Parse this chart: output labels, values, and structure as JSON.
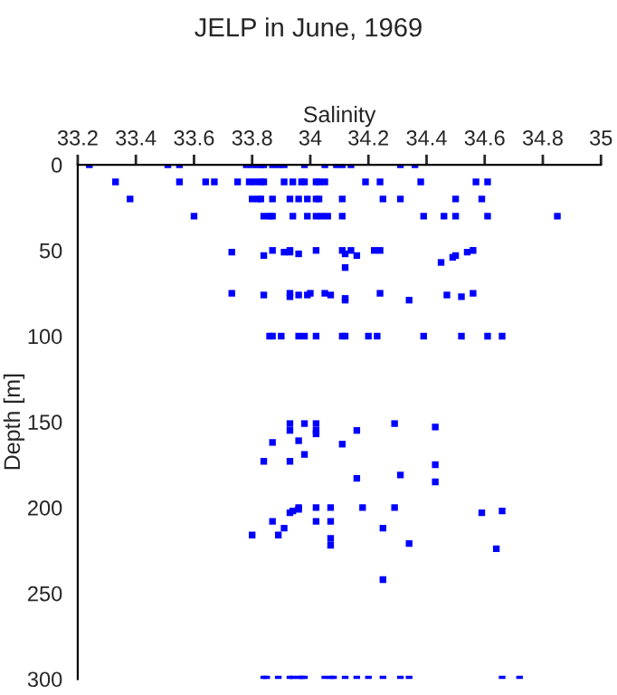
{
  "chart_data": {
    "type": "scatter",
    "title": "JELP in June, 1969",
    "xlabel": "Salinity",
    "ylabel": "Depth [m]",
    "xlim": [
      33.2,
      35
    ],
    "xticks": [
      33.2,
      33.4,
      33.6,
      33.8,
      34,
      34.2,
      34.4,
      34.6,
      34.8,
      35
    ],
    "ylim": [
      300,
      0
    ],
    "yticks": [
      0,
      50,
      100,
      150,
      200,
      250,
      300
    ],
    "marker": "square",
    "grid": false,
    "legend": false,
    "series": [
      {
        "color": "#0000ff",
        "x": [
          33.24,
          33.51,
          33.55,
          33.78,
          33.8,
          33.82,
          33.83,
          33.84,
          33.87,
          33.89,
          33.91,
          33.98,
          34.05,
          34.09,
          34.11,
          34.14,
          34.31,
          34.36,
          33.33,
          33.55,
          33.64,
          33.67,
          33.75,
          33.79,
          33.81,
          33.83,
          33.84,
          33.91,
          33.94,
          33.97,
          33.98,
          34.02,
          34.03,
          34.05,
          34.19,
          34.24,
          34.38,
          34.57,
          34.61,
          33.38,
          33.8,
          33.82,
          33.83,
          33.87,
          33.93,
          33.96,
          33.99,
          34.02,
          34.03,
          34.11,
          34.25,
          34.31,
          34.5,
          34.59,
          33.6,
          33.84,
          33.86,
          33.87,
          33.94,
          33.99,
          34.02,
          34.04,
          34.06,
          34.11,
          34.39,
          34.46,
          34.5,
          34.61,
          34.85,
          33.73,
          33.84,
          33.87,
          33.91,
          33.93,
          33.93,
          33.96,
          34.02,
          34.11,
          34.12,
          34.14,
          34.16,
          34.12,
          34.22,
          34.24,
          34.45,
          34.49,
          34.5,
          34.54,
          34.56,
          33.73,
          33.84,
          33.93,
          33.93,
          33.96,
          33.99,
          34.0,
          34.05,
          34.07,
          34.12,
          34.12,
          34.24,
          34.34,
          34.47,
          34.52,
          34.56,
          33.86,
          33.87,
          33.9,
          33.96,
          33.98,
          34.02,
          34.11,
          34.12,
          34.2,
          34.23,
          34.39,
          34.52,
          34.61,
          34.66,
          33.93,
          33.93,
          33.98,
          34.02,
          34.02,
          34.02,
          34.16,
          34.29,
          34.43,
          33.87,
          33.96,
          34.11,
          33.84,
          33.93,
          33.98,
          34.16,
          34.31,
          34.43,
          34.43,
          33.96,
          34.02,
          34.07,
          34.18,
          34.29,
          33.87,
          33.93,
          33.94,
          33.96,
          34.02,
          34.07,
          33.91,
          33.8,
          33.89,
          34.07,
          34.07,
          34.25,
          34.34,
          34.59,
          34.66,
          34.64,
          34.25,
          33.84,
          33.85,
          33.89,
          33.93,
          33.94,
          33.96,
          33.97,
          33.98,
          34.05,
          34.07,
          34.08,
          34.12,
          34.16,
          34.2,
          34.25,
          34.31,
          34.34,
          34.66,
          34.72
        ],
        "values": [
          0,
          0,
          0,
          0,
          0,
          0,
          0,
          0,
          0,
          0,
          0,
          0,
          0,
          0,
          0,
          0,
          0,
          0,
          10,
          10,
          10,
          10,
          10,
          10,
          10,
          10,
          10,
          10,
          10,
          10,
          10,
          10,
          10,
          10,
          10,
          10,
          10,
          10,
          10,
          20,
          20,
          20,
          20,
          20,
          20,
          20,
          20,
          20,
          20,
          20,
          20,
          20,
          20,
          20,
          30,
          30,
          30,
          30,
          30,
          30,
          30,
          30,
          30,
          30,
          30,
          30,
          30,
          30,
          30,
          51,
          53,
          50,
          51,
          51,
          50,
          52,
          50,
          50,
          52,
          50,
          53,
          60,
          50,
          50,
          57,
          54,
          53,
          51,
          50,
          75,
          76,
          75,
          77,
          76,
          76,
          75,
          75,
          76,
          78,
          79,
          75,
          79,
          76,
          77,
          75,
          100,
          100,
          100,
          100,
          100,
          100,
          100,
          100,
          100,
          100,
          100,
          100,
          100,
          100,
          151,
          155,
          151,
          151,
          155,
          157,
          155,
          151,
          153,
          162,
          161,
          163,
          173,
          173,
          169,
          183,
          181,
          175,
          185,
          200,
          200,
          200,
          200,
          200,
          208,
          203,
          202,
          201,
          208,
          208,
          212,
          216,
          216,
          218,
          222,
          212,
          221,
          203,
          202,
          224,
          242,
          300,
          300,
          300,
          300,
          300,
          300,
          300,
          300,
          300,
          300,
          300,
          300,
          300,
          300,
          300,
          300,
          300,
          300,
          300
        ]
      }
    ]
  }
}
